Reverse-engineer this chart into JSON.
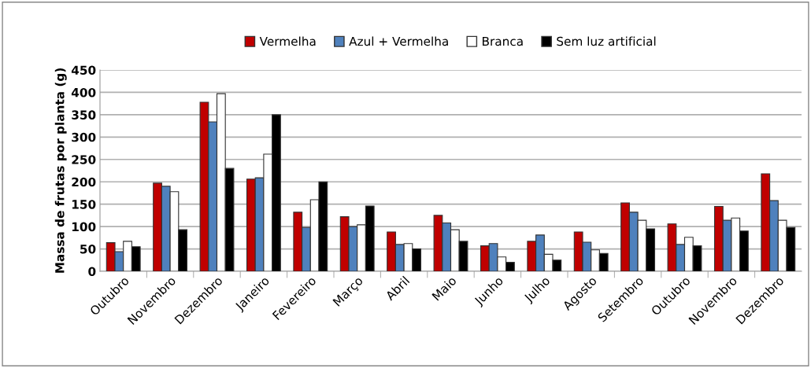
{
  "chart_data": {
    "type": "bar",
    "ylabel": "Massa de frutas por planta (g)",
    "categories": [
      "Outubro",
      "Novembro",
      "Dezembro",
      "Janeiro",
      "Fevereiro",
      "Março",
      "Abril",
      "Maio",
      "Junho",
      "Julho",
      "Agosto",
      "Setembro",
      "Outubro",
      "Novembro",
      "Dezembro"
    ],
    "series": [
      {
        "name": "Vermelha",
        "color": "#c00000",
        "values": [
          64,
          197,
          378,
          206,
          132,
          122,
          88,
          125,
          57,
          67,
          88,
          153,
          106,
          145,
          218
        ]
      },
      {
        "name": "Azul + Vermelha",
        "color": "#4f81bd",
        "values": [
          44,
          190,
          334,
          209,
          98,
          100,
          60,
          108,
          62,
          81,
          65,
          132,
          60,
          114,
          158
        ]
      },
      {
        "name": "Branca",
        "color": "#ffffff",
        "values": [
          67,
          178,
          397,
          262,
          160,
          104,
          62,
          93,
          32,
          38,
          48,
          114,
          76,
          119,
          114
        ]
      },
      {
        "name": "Sem luz artificial",
        "color": "#000000",
        "values": [
          55,
          93,
          230,
          350,
          200,
          146,
          50,
          67,
          20,
          25,
          40,
          95,
          57,
          90,
          98
        ]
      }
    ],
    "ylim": [
      0,
      450
    ],
    "yticks": [
      0,
      50,
      100,
      150,
      200,
      250,
      300,
      350,
      400,
      450
    ],
    "grid": "y",
    "legend": "top"
  }
}
